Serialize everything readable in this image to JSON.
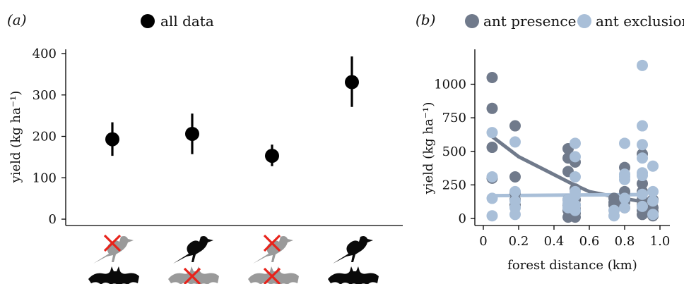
{
  "chart_data": [
    {
      "panel_label": "(a)",
      "type": "scatter",
      "title": "",
      "legend": [
        {
          "name": "all data",
          "color": "#000000"
        }
      ],
      "legend_position": "top",
      "xlabel": "",
      "ylabel": "yield (kg ha⁻¹)",
      "ylim": [
        0,
        420
      ],
      "yticks": [
        "0",
        "100",
        "200",
        "300",
        "400"
      ],
      "grid": false,
      "categories": [
        "birds excluded, bats present",
        "birds present, bats excluded",
        "birds and bats excluded",
        "birds and bats present"
      ],
      "category_icons": [
        {
          "bird": "bird-excluded",
          "bat": "bat-present"
        },
        {
          "bird": "bird-present",
          "bat": "bat-excluded"
        },
        {
          "bird": "bird-excluded",
          "bat": "bat-excluded"
        },
        {
          "bird": "bird-present",
          "bat": "bat-present"
        }
      ],
      "series": [
        {
          "name": "all data",
          "values": [
            193,
            206,
            153,
            331
          ],
          "lower": [
            153,
            157,
            128,
            271
          ],
          "upper": [
            234,
            255,
            180,
            393
          ]
        }
      ]
    },
    {
      "panel_label": "(b)",
      "type": "scatter",
      "title": "",
      "legend_position": "top",
      "xlabel": "forest distance (km)",
      "ylabel": "yield (kg ha⁻¹)",
      "xlim": [
        0,
        1.0
      ],
      "ylim": [
        0,
        1150
      ],
      "xticks": [
        "0",
        "0.2",
        "0.4",
        "0.6",
        "0.8",
        "1.0"
      ],
      "yticks": [
        "0",
        "250",
        "500",
        "750",
        "1000"
      ],
      "grid": false,
      "series": [
        {
          "name": "ant presence",
          "color": "#707a8b",
          "points": [
            [
              0.05,
              1050
            ],
            [
              0.05,
              820
            ],
            [
              0.05,
              530
            ],
            [
              0.05,
              300
            ],
            [
              0.18,
              690
            ],
            [
              0.18,
              310
            ],
            [
              0.18,
              190
            ],
            [
              0.18,
              140
            ],
            [
              0.18,
              100
            ],
            [
              0.48,
              520
            ],
            [
              0.48,
              450
            ],
            [
              0.48,
              350
            ],
            [
              0.48,
              140
            ],
            [
              0.48,
              100
            ],
            [
              0.48,
              60
            ],
            [
              0.48,
              10
            ],
            [
              0.52,
              420
            ],
            [
              0.52,
              220
            ],
            [
              0.52,
              140
            ],
            [
              0.52,
              100
            ],
            [
              0.52,
              70
            ],
            [
              0.52,
              40
            ],
            [
              0.52,
              10
            ],
            [
              0.74,
              150
            ],
            [
              0.74,
              120
            ],
            [
              0.74,
              100
            ],
            [
              0.8,
              380
            ],
            [
              0.8,
              200
            ],
            [
              0.8,
              120
            ],
            [
              0.8,
              80
            ],
            [
              0.9,
              480
            ],
            [
              0.9,
              260
            ],
            [
              0.9,
              200
            ],
            [
              0.9,
              140
            ],
            [
              0.9,
              100
            ],
            [
              0.9,
              60
            ],
            [
              0.9,
              30
            ],
            [
              0.96,
              140
            ],
            [
              0.96,
              80
            ],
            [
              0.96,
              50
            ],
            [
              0.96,
              20
            ]
          ],
          "fit": [
            [
              0.05,
              610
            ],
            [
              0.2,
              460
            ],
            [
              0.35,
              360
            ],
            [
              0.5,
              260
            ],
            [
              0.6,
              200
            ],
            [
              0.75,
              160
            ],
            [
              0.9,
              125
            ]
          ]
        },
        {
          "name": "ant exclusion",
          "color": "#a9bfd8",
          "points": [
            [
              0.05,
              640
            ],
            [
              0.05,
              310
            ],
            [
              0.05,
              150
            ],
            [
              0.05,
              20
            ],
            [
              0.18,
              570
            ],
            [
              0.18,
              200
            ],
            [
              0.18,
              130
            ],
            [
              0.18,
              80
            ],
            [
              0.18,
              30
            ],
            [
              0.48,
              140
            ],
            [
              0.48,
              110
            ],
            [
              0.48,
              80
            ],
            [
              0.52,
              560
            ],
            [
              0.52,
              460
            ],
            [
              0.52,
              310
            ],
            [
              0.52,
              200
            ],
            [
              0.52,
              170
            ],
            [
              0.52,
              100
            ],
            [
              0.52,
              60
            ],
            [
              0.74,
              60
            ],
            [
              0.74,
              20
            ],
            [
              0.8,
              560
            ],
            [
              0.8,
              330
            ],
            [
              0.8,
              310
            ],
            [
              0.8,
              290
            ],
            [
              0.8,
              150
            ],
            [
              0.8,
              80
            ],
            [
              0.9,
              1140
            ],
            [
              0.9,
              690
            ],
            [
              0.9,
              550
            ],
            [
              0.9,
              450
            ],
            [
              0.9,
              340
            ],
            [
              0.9,
              320
            ],
            [
              0.9,
              180
            ],
            [
              0.9,
              90
            ],
            [
              0.96,
              390
            ],
            [
              0.96,
              200
            ],
            [
              0.96,
              130
            ],
            [
              0.96,
              30
            ]
          ],
          "fit": [
            [
              0.05,
              170
            ],
            [
              0.5,
              175
            ],
            [
              0.9,
              178
            ]
          ]
        }
      ]
    }
  ]
}
